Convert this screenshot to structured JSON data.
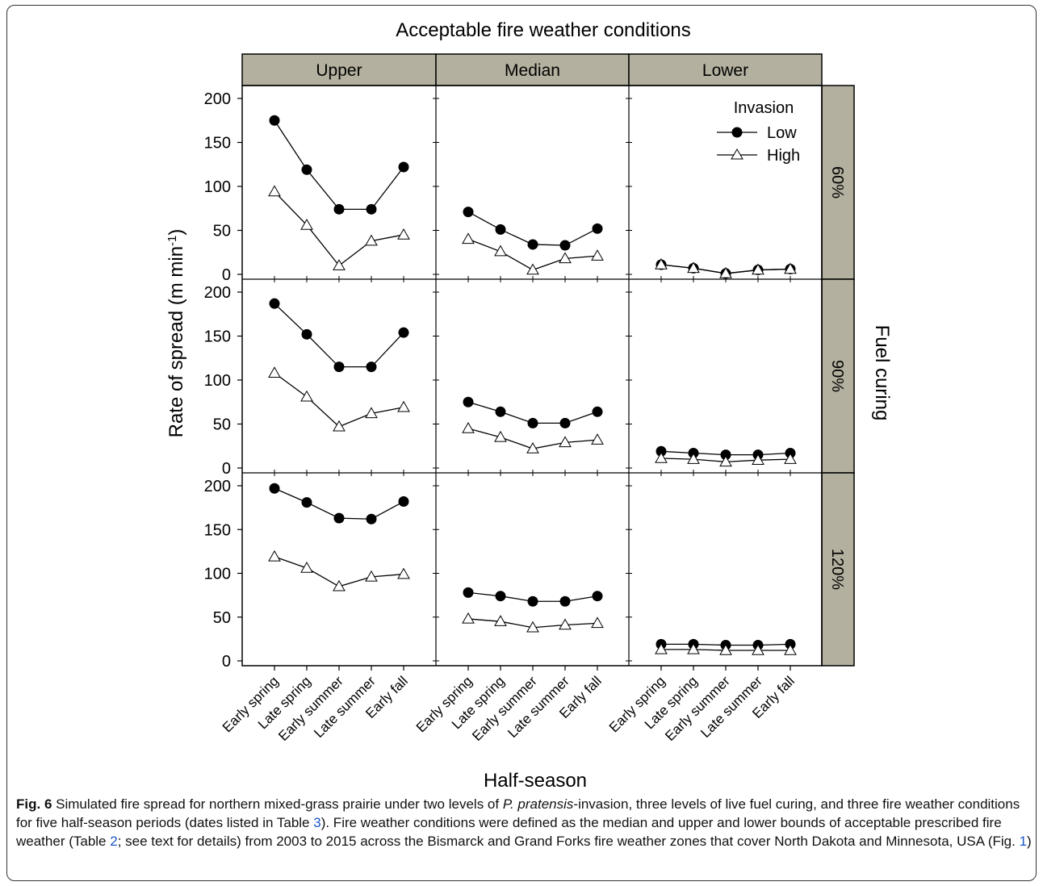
{
  "chart_data": {
    "type": "line",
    "title": "Acceptable fire weather conditions",
    "xlabel": "Half-season",
    "ylabel": "Rate of spread (m min",
    "ylabel_sup": "-1",
    "ylabel_close": ")",
    "strip_right_title": "Fuel curing",
    "ylim": [
      0,
      215
    ],
    "yticks": [
      "0",
      "50",
      "100",
      "150",
      "200"
    ],
    "categories": [
      "Early spring",
      "Late spring",
      "Early summer",
      "Late summer",
      "Early fall"
    ],
    "columns": [
      "Upper",
      "Median",
      "Lower"
    ],
    "rows": [
      "60%",
      "90%",
      "120%"
    ],
    "legend": {
      "title": "Invasion",
      "entries": [
        "Low",
        "High"
      ],
      "position": "top-right"
    },
    "panels": [
      {
        "column": "Upper",
        "row": "60%",
        "series": [
          {
            "name": "Low",
            "values": [
              175,
              119,
              74,
              74,
              122
            ]
          },
          {
            "name": "High",
            "values": [
              94,
              56,
              10,
              38,
              45
            ]
          }
        ]
      },
      {
        "column": "Median",
        "row": "60%",
        "series": [
          {
            "name": "Low",
            "values": [
              71,
              51,
              34,
              33,
              52
            ]
          },
          {
            "name": "High",
            "values": [
              40,
              26,
              5,
              18,
              21
            ]
          }
        ]
      },
      {
        "column": "Lower",
        "row": "60%",
        "series": [
          {
            "name": "Low",
            "values": [
              11,
              7,
              1,
              5,
              6
            ]
          },
          {
            "name": "High",
            "values": [
              11,
              7,
              1,
              5,
              6
            ]
          }
        ]
      },
      {
        "column": "Upper",
        "row": "90%",
        "series": [
          {
            "name": "Low",
            "values": [
              187,
              152,
              115,
              115,
              154
            ]
          },
          {
            "name": "High",
            "values": [
              108,
              81,
              47,
              62,
              69
            ]
          }
        ]
      },
      {
        "column": "Median",
        "row": "90%",
        "series": [
          {
            "name": "Low",
            "values": [
              75,
              64,
              51,
              51,
              64
            ]
          },
          {
            "name": "High",
            "values": [
              45,
              35,
              22,
              29,
              32
            ]
          }
        ]
      },
      {
        "column": "Lower",
        "row": "90%",
        "series": [
          {
            "name": "Low",
            "values": [
              19,
              17,
              15,
              15,
              17
            ]
          },
          {
            "name": "High",
            "values": [
              11,
              10,
              7,
              9,
              10
            ]
          }
        ]
      },
      {
        "column": "Upper",
        "row": "120%",
        "series": [
          {
            "name": "Low",
            "values": [
              197,
              181,
              163,
              162,
              182
            ]
          },
          {
            "name": "High",
            "values": [
              119,
              106,
              85,
              96,
              99
            ]
          }
        ]
      },
      {
        "column": "Median",
        "row": "120%",
        "series": [
          {
            "name": "Low",
            "values": [
              78,
              74,
              68,
              68,
              74
            ]
          },
          {
            "name": "High",
            "values": [
              48,
              45,
              38,
              41,
              43
            ]
          }
        ]
      },
      {
        "column": "Lower",
        "row": "120%",
        "series": [
          {
            "name": "Low",
            "values": [
              19,
              19,
              18,
              18,
              19
            ]
          },
          {
            "name": "High",
            "values": [
              13,
              13,
              12,
              12,
              12
            ]
          }
        ]
      }
    ],
    "grid": false,
    "colors": {
      "strip_fill": "#b3b09f",
      "line": "#000000",
      "frame": "#000000"
    }
  },
  "caption": {
    "fig_label": "Fig. 6",
    "t1": " Simulated fire spread for northern mixed-grass prairie under two levels of ",
    "species": "P. pratensis",
    "t2": "-invasion, three levels of live fuel curing, and three fire weather conditions for five half-season periods (dates listed in Table ",
    "ref_table3": "3",
    "t3": "). Fire weather conditions were defined as the median and upper and lower bounds of acceptable prescribed fire weather (Table ",
    "ref_table2": "2",
    "t4": "; see text for details) from 2003 to 2015 across the Bismarck and Grand Forks fire weather zones that cover North Dakota and Minnesota, USA (Fig. ",
    "ref_fig1": "1",
    "t5": ")"
  }
}
